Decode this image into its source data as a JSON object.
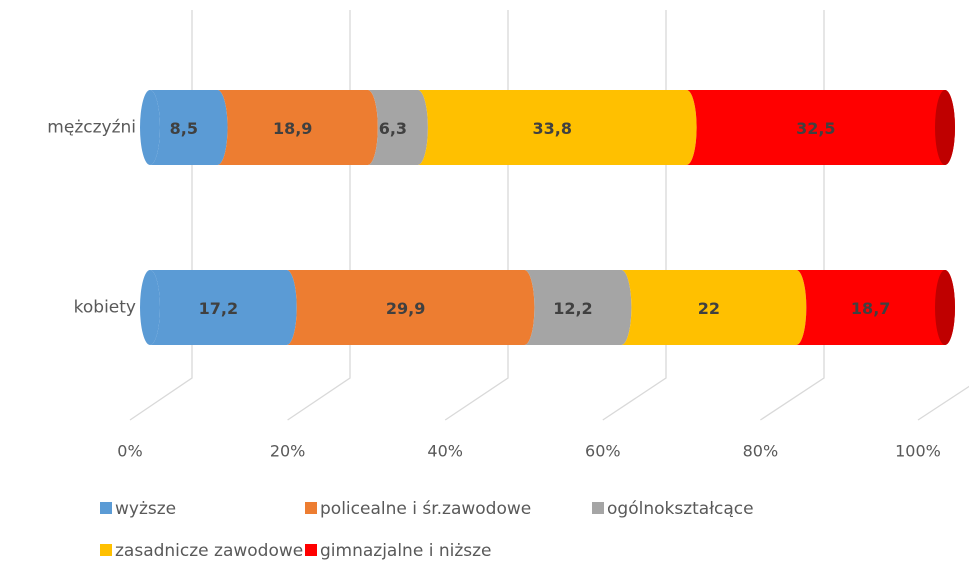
{
  "chart_data": {
    "type": "stacked-bar-horizontal",
    "categories": [
      "mężczyźni",
      "kobiety"
    ],
    "series": [
      {
        "name": "wyższe",
        "color": "#5b9bd5",
        "values": [
          8.5,
          17.2
        ],
        "value_labels": [
          "8,5",
          "17,2"
        ]
      },
      {
        "name": "policealne i śr.zawodowe",
        "color": "#ed7d31",
        "values": [
          18.9,
          29.9
        ],
        "value_labels": [
          "18,9",
          "29,9"
        ]
      },
      {
        "name": "ogólnokształcące",
        "color": "#a5a5a5",
        "values": [
          6.3,
          12.2
        ],
        "value_labels": [
          "6,3",
          "12,2"
        ]
      },
      {
        "name": "zasadnicze zawodowe",
        "color": "#ffc000",
        "values": [
          33.8,
          22
        ],
        "value_labels": [
          "33,8",
          "22"
        ]
      },
      {
        "name": "gimnazjalne i niższe",
        "color": "#ff0000",
        "values": [
          32.5,
          18.7
        ],
        "value_labels": [
          "32,5",
          "18,7"
        ]
      }
    ],
    "xlim": [
      0,
      100
    ],
    "xticks": [
      {
        "value": 0,
        "label": "0%"
      },
      {
        "value": 20,
        "label": "20%"
      },
      {
        "value": 40,
        "label": "40%"
      },
      {
        "value": 60,
        "label": "60%"
      },
      {
        "value": 80,
        "label": "80%"
      },
      {
        "value": 100,
        "label": "100%"
      }
    ],
    "grid": true,
    "legend": "bottom"
  }
}
